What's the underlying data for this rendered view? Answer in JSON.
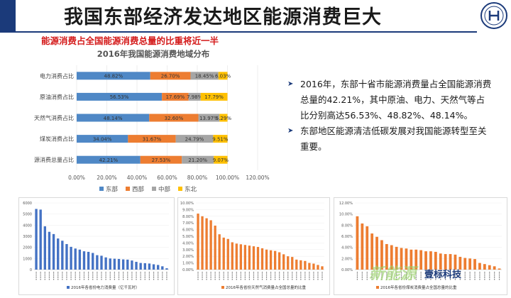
{
  "slide": {
    "title": "我国东部经济发达地区能源消费巨大",
    "subtitle": "能源消费占全国能源消费总量的比重将近一半",
    "bullets": [
      "2016年，东部十省市能源消费量占全国能源消费总量的42.21%，其中原油、电力、天然气等占比分别高达56.53%、48.82%、48.14%。",
      "东部地区能源清洁低碳发展对我国能源转型至关重要。"
    ],
    "watermark": "新能源",
    "watermark_brand": "壹标科技"
  },
  "colors": {
    "east": "#4f88c6",
    "west": "#ed7d31",
    "central": "#a5a5a5",
    "north": "#ffc000",
    "accent": "#1b3a7a",
    "red": "#d41a1a"
  },
  "chart_data": [
    {
      "type": "bar",
      "orientation": "horizontal-stacked",
      "title": "2016年我国能源消费地域分布",
      "categories": [
        "电力消费占比",
        "原油消费占比",
        "天然气消费占比",
        "煤炭消费占比",
        "能源消费总量占比"
      ],
      "series": [
        {
          "name": "东部",
          "values": [
            48.82,
            56.53,
            48.14,
            34.04,
            42.21
          ]
        },
        {
          "name": "西部",
          "values": [
            26.7,
            17.69,
            32.6,
            31.67,
            27.53
          ]
        },
        {
          "name": "中部",
          "values": [
            18.45,
            7.98,
            13.97,
            24.79,
            21.2
          ]
        },
        {
          "name": "东北",
          "values": [
            6.03,
            17.79,
            5.29,
            9.51,
            9.07
          ]
        }
      ],
      "data_labels": [
        [
          "48.82%",
          "26.70%",
          "18.45%",
          "6.03%"
        ],
        [
          "56.53%",
          "17.69%",
          "7.98%",
          "17.79%"
        ],
        [
          "48.14%",
          "32.60%",
          "13.97%",
          "5.29%"
        ],
        [
          "34.04%",
          "31.67%",
          "24.79%",
          "9.51%"
        ],
        [
          "42.21%",
          "27.53%",
          "21.20%",
          "9.07%"
        ]
      ],
      "xticks": [
        "0.00%",
        "20.00%",
        "40.00%",
        "60.00%",
        "80.00%",
        "100.00%",
        "120.00%"
      ],
      "xlim": [
        0,
        120
      ],
      "legend": "bottom"
    },
    {
      "type": "bar",
      "title": "2016年各省份电力消费量（亿千瓦时）",
      "yticks": [
        "0",
        "1000",
        "2000",
        "3000",
        "4000",
        "5000",
        "6000"
      ],
      "ylim": [
        0,
        6000
      ],
      "values": [
        5460,
        5400,
        3900,
        3400,
        3200,
        2800,
        2600,
        2300,
        2050,
        1900,
        1800,
        1650,
        1600,
        1500,
        1300,
        1250,
        1100,
        1000,
        980,
        960,
        920,
        900,
        820,
        700,
        600,
        580,
        550,
        480,
        420,
        300,
        120
      ],
      "color": "#4472c4",
      "legend": "bottom"
    },
    {
      "type": "bar",
      "title": "2016年各省份天然气消费量占全国总量的比重",
      "yticks": [
        "0.00%",
        "1.00%",
        "2.00%",
        "3.00%",
        "4.00%",
        "5.00%",
        "6.00%",
        "7.00%",
        "8.00%",
        "9.00%",
        "10.00%"
      ],
      "ylim": [
        0,
        10
      ],
      "values": [
        8.4,
        8.0,
        7.7,
        7.4,
        6.6,
        5.3,
        4.8,
        4.6,
        4.1,
        3.9,
        3.8,
        3.7,
        3.6,
        3.5,
        3.4,
        3.2,
        3.0,
        2.9,
        2.8,
        2.6,
        2.3,
        2.0,
        1.9,
        1.5,
        1.4,
        1.3,
        1.0,
        0.9,
        0.7,
        0.5
      ],
      "color": "#ed7d31",
      "legend": "bottom"
    },
    {
      "type": "bar",
      "title": "2016年各省份煤炭消费量占全国总量的比重",
      "yticks": [
        "0.00%",
        "2.00%",
        "4.00%",
        "6.00%",
        "8.00%",
        "10.00%",
        "12.00%"
      ],
      "ylim": [
        0,
        12
      ],
      "values": [
        9.6,
        8.3,
        7.8,
        6.5,
        5.9,
        5.3,
        4.6,
        4.4,
        4.1,
        3.9,
        3.8,
        3.6,
        3.6,
        3.5,
        3.3,
        3.3,
        3.2,
        2.9,
        2.8,
        2.8,
        2.7,
        2.3,
        2.1,
        2.0,
        1.9,
        1.2,
        1.0,
        0.8,
        0.6,
        0.2
      ],
      "color": "#ed7d31",
      "legend": "bottom"
    }
  ]
}
